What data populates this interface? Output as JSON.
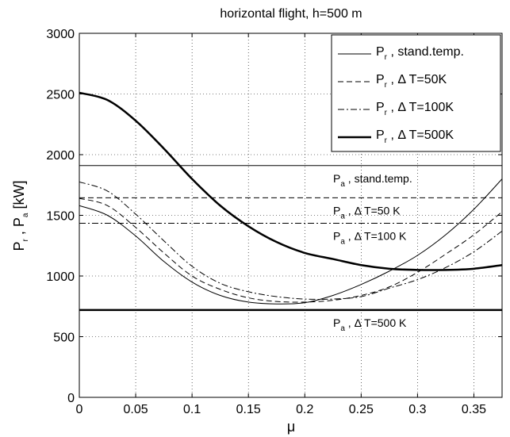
{
  "chart_data": {
    "type": "line",
    "title": "horizontal flight, h=500 m",
    "xlabel": "μ",
    "ylabel": {
      "main1": "P",
      "sub1": "r",
      "mid": " , P",
      "sub2": "a",
      "tail": "  [kW]"
    },
    "xlim": [
      0,
      0.375
    ],
    "ylim": [
      0,
      3000
    ],
    "xticks": [
      0,
      0.05,
      0.1,
      0.15,
      0.2,
      0.25,
      0.3,
      0.35
    ],
    "xtick_labels": [
      "0",
      "0.05",
      "0.1",
      "0.15",
      "0.2",
      "0.25",
      "0.3",
      "0.35"
    ],
    "yticks": [
      0,
      500,
      1000,
      1500,
      2000,
      2500,
      3000
    ],
    "ytick_labels": [
      "0",
      "500",
      "1000",
      "1500",
      "2000",
      "2500",
      "3000"
    ],
    "grid": true,
    "legend_position": "top-right",
    "x": [
      0,
      0.025,
      0.05,
      0.075,
      0.1,
      0.125,
      0.15,
      0.175,
      0.2,
      0.225,
      0.25,
      0.275,
      0.3,
      0.325,
      0.35,
      0.375
    ],
    "series": [
      {
        "legend": {
          "main": "P",
          "sub": "r",
          "rest": " , stand.temp."
        },
        "style": "solid",
        "width": 1,
        "values": [
          1580,
          1500,
          1330,
          1120,
          950,
          840,
          785,
          770,
          780,
          840,
          930,
          1040,
          1170,
          1340,
          1550,
          1800
        ]
      },
      {
        "legend": {
          "main": "P",
          "sub": "r",
          "rest": " , Δ T=50K"
        },
        "style": "dashed",
        "width": 1,
        "values": [
          1640,
          1580,
          1400,
          1190,
          1000,
          890,
          820,
          790,
          785,
          800,
          840,
          910,
          1030,
          1180,
          1340,
          1530
        ]
      },
      {
        "legend": {
          "main": "P",
          "sub": "r",
          "rest": " , Δ T=100K"
        },
        "style": "dashdot",
        "width": 1,
        "values": [
          1775,
          1700,
          1510,
          1290,
          1080,
          940,
          870,
          830,
          810,
          810,
          830,
          900,
          970,
          1070,
          1200,
          1370
        ]
      },
      {
        "legend": {
          "main": "P",
          "sub": "r",
          "rest": " , Δ T=500K"
        },
        "style": "solid",
        "width": 2.5,
        "values": [
          2510,
          2450,
          2280,
          2050,
          1800,
          1580,
          1410,
          1280,
          1190,
          1140,
          1090,
          1060,
          1050,
          1050,
          1060,
          1090
        ]
      }
    ],
    "reference_lines": [
      {
        "y": 1910,
        "style": "solid",
        "width": 1,
        "label": {
          "main": "P",
          "sub": "a",
          "rest": " , stand.temp."
        }
      },
      {
        "y": 1645,
        "style": "dashed",
        "width": 1,
        "label": {
          "main": "P",
          "sub": "a",
          "rest": " , Δ T=50 K"
        }
      },
      {
        "y": 1435,
        "style": "dashdot",
        "width": 1,
        "label": {
          "main": "P",
          "sub": "a",
          "rest": " , Δ T=100 K"
        }
      },
      {
        "y": 720,
        "style": "solid",
        "width": 2.5,
        "label": {
          "main": "P",
          "sub": "a",
          "rest": " , Δ T=500 K"
        }
      }
    ]
  }
}
